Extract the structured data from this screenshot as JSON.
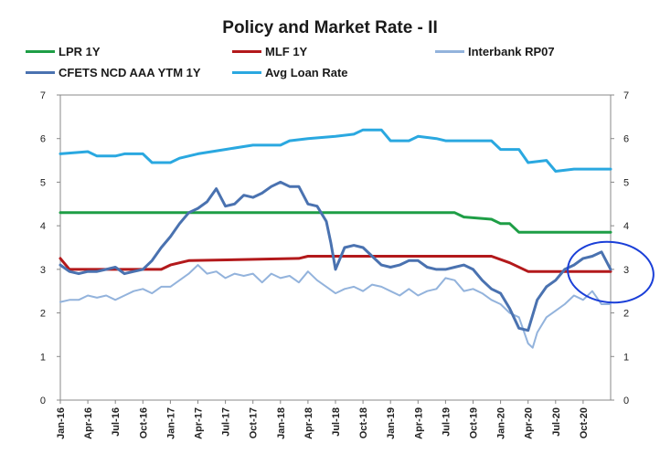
{
  "chart_data": {
    "type": "line",
    "title": "Policy and Market Rate - II",
    "xlabel": "",
    "ylabel": "",
    "ylim": [
      0,
      7
    ],
    "y2lim": [
      0,
      7
    ],
    "yticks": [
      "0",
      "1",
      "2",
      "3",
      "4",
      "5",
      "6",
      "7"
    ],
    "y2ticks": [
      "0",
      "1",
      "2",
      "3",
      "4",
      "5",
      "6",
      "7"
    ],
    "xlim": [
      0,
      60
    ],
    "grid": false,
    "legend_position": "top",
    "x_tick_labels": [
      {
        "label": "Jan-16",
        "x": 0
      },
      {
        "label": "Apr-16",
        "x": 3
      },
      {
        "label": "Jul-16",
        "x": 6
      },
      {
        "label": "Oct-16",
        "x": 9
      },
      {
        "label": "Jan-17",
        "x": 12
      },
      {
        "label": "Apr-17",
        "x": 15
      },
      {
        "label": "Jul-17",
        "x": 18
      },
      {
        "label": "Oct-17",
        "x": 21
      },
      {
        "label": "Jan-18",
        "x": 24
      },
      {
        "label": "Apr-18",
        "x": 27
      },
      {
        "label": "Jul-18",
        "x": 30
      },
      {
        "label": "Oct-18",
        "x": 33
      },
      {
        "label": "Jan-19",
        "x": 36
      },
      {
        "label": "Apr-19",
        "x": 39
      },
      {
        "label": "Jul-19",
        "x": 42
      },
      {
        "label": "Oct-19",
        "x": 45
      },
      {
        "label": "Jan-20",
        "x": 48
      },
      {
        "label": "Apr-20",
        "x": 51
      },
      {
        "label": "Jul-20",
        "x": 54
      },
      {
        "label": "Oct-20",
        "x": 57
      }
    ],
    "series": [
      {
        "name": "LPR 1Y",
        "color": "#1e9e46",
        "width": 3,
        "points": [
          [
            0,
            4.3
          ],
          [
            43,
            4.3
          ],
          [
            44,
            4.2
          ],
          [
            47,
            4.15
          ],
          [
            48,
            4.05
          ],
          [
            49,
            4.05
          ],
          [
            50,
            3.85
          ],
          [
            60,
            3.85
          ]
        ]
      },
      {
        "name": "MLF 1Y",
        "color": "#b3191b",
        "width": 3,
        "points": [
          [
            0,
            3.25
          ],
          [
            1,
            3.0
          ],
          [
            11,
            3.0
          ],
          [
            12,
            3.1
          ],
          [
            14,
            3.2
          ],
          [
            26,
            3.25
          ],
          [
            27,
            3.3
          ],
          [
            47,
            3.3
          ],
          [
            49,
            3.15
          ],
          [
            51,
            2.95
          ],
          [
            60,
            2.95
          ]
        ]
      },
      {
        "name": "Interbank RP07",
        "color": "#93b3dc",
        "width": 2,
        "points": [
          [
            0,
            2.25
          ],
          [
            1,
            2.3
          ],
          [
            2,
            2.3
          ],
          [
            3,
            2.4
          ],
          [
            4,
            2.35
          ],
          [
            5,
            2.4
          ],
          [
            6,
            2.3
          ],
          [
            7,
            2.4
          ],
          [
            8,
            2.5
          ],
          [
            9,
            2.55
          ],
          [
            10,
            2.45
          ],
          [
            11,
            2.6
          ],
          [
            12,
            2.6
          ],
          [
            13,
            2.75
          ],
          [
            14,
            2.9
          ],
          [
            15,
            3.1
          ],
          [
            16,
            2.9
          ],
          [
            17,
            2.95
          ],
          [
            18,
            2.8
          ],
          [
            19,
            2.9
          ],
          [
            20,
            2.85
          ],
          [
            21,
            2.9
          ],
          [
            22,
            2.7
          ],
          [
            23,
            2.9
          ],
          [
            24,
            2.8
          ],
          [
            25,
            2.85
          ],
          [
            26,
            2.7
          ],
          [
            27,
            2.95
          ],
          [
            28,
            2.75
          ],
          [
            29,
            2.6
          ],
          [
            30,
            2.45
          ],
          [
            31,
            2.55
          ],
          [
            32,
            2.6
          ],
          [
            33,
            2.5
          ],
          [
            34,
            2.65
          ],
          [
            35,
            2.6
          ],
          [
            36,
            2.5
          ],
          [
            37,
            2.4
          ],
          [
            38,
            2.55
          ],
          [
            39,
            2.4
          ],
          [
            40,
            2.5
          ],
          [
            41,
            2.55
          ],
          [
            42,
            2.8
          ],
          [
            43,
            2.75
          ],
          [
            44,
            2.5
          ],
          [
            45,
            2.55
          ],
          [
            46,
            2.45
          ],
          [
            47,
            2.3
          ],
          [
            48,
            2.2
          ],
          [
            49,
            2.0
          ],
          [
            50,
            1.9
          ],
          [
            51,
            1.3
          ],
          [
            51.5,
            1.2
          ],
          [
            52,
            1.55
          ],
          [
            53,
            1.9
          ],
          [
            54,
            2.05
          ],
          [
            55,
            2.2
          ],
          [
            56,
            2.4
          ],
          [
            57,
            2.3
          ],
          [
            58,
            2.5
          ],
          [
            59,
            2.2
          ],
          [
            60,
            2.2
          ]
        ]
      },
      {
        "name": "CFETS NCD AAA YTM 1Y",
        "color": "#4a72b0",
        "width": 3,
        "points": [
          [
            0,
            3.1
          ],
          [
            1,
            2.95
          ],
          [
            2,
            2.9
          ],
          [
            3,
            2.95
          ],
          [
            4,
            2.95
          ],
          [
            5,
            3.0
          ],
          [
            6,
            3.05
          ],
          [
            7,
            2.9
          ],
          [
            8,
            2.95
          ],
          [
            9,
            3.0
          ],
          [
            10,
            3.2
          ],
          [
            11,
            3.5
          ],
          [
            12,
            3.75
          ],
          [
            13,
            4.05
          ],
          [
            14,
            4.3
          ],
          [
            15,
            4.4
          ],
          [
            16,
            4.55
          ],
          [
            17,
            4.85
          ],
          [
            18,
            4.45
          ],
          [
            19,
            4.5
          ],
          [
            20,
            4.7
          ],
          [
            21,
            4.65
          ],
          [
            22,
            4.75
          ],
          [
            23,
            4.9
          ],
          [
            24,
            5.0
          ],
          [
            25,
            4.9
          ],
          [
            26,
            4.9
          ],
          [
            27,
            4.5
          ],
          [
            28,
            4.45
          ],
          [
            29,
            4.1
          ],
          [
            29.5,
            3.6
          ],
          [
            30,
            3.0
          ],
          [
            31,
            3.5
          ],
          [
            32,
            3.55
          ],
          [
            33,
            3.5
          ],
          [
            34,
            3.3
          ],
          [
            35,
            3.1
          ],
          [
            36,
            3.05
          ],
          [
            37,
            3.1
          ],
          [
            38,
            3.2
          ],
          [
            39,
            3.2
          ],
          [
            40,
            3.05
          ],
          [
            41,
            3.0
          ],
          [
            42,
            3.0
          ],
          [
            43,
            3.05
          ],
          [
            44,
            3.1
          ],
          [
            45,
            3.0
          ],
          [
            46,
            2.75
          ],
          [
            47,
            2.55
          ],
          [
            48,
            2.45
          ],
          [
            49,
            2.1
          ],
          [
            50,
            1.65
          ],
          [
            51,
            1.6
          ],
          [
            52,
            2.3
          ],
          [
            53,
            2.6
          ],
          [
            54,
            2.75
          ],
          [
            55,
            3.0
          ],
          [
            56,
            3.1
          ],
          [
            57,
            3.25
          ],
          [
            58,
            3.3
          ],
          [
            59,
            3.4
          ],
          [
            60,
            3.0
          ]
        ]
      },
      {
        "name": "Avg Loan Rate",
        "color": "#2aa8e0",
        "width": 3,
        "points": [
          [
            0,
            5.65
          ],
          [
            3,
            5.7
          ],
          [
            4,
            5.6
          ],
          [
            6,
            5.6
          ],
          [
            7,
            5.65
          ],
          [
            9,
            5.65
          ],
          [
            10,
            5.45
          ],
          [
            12,
            5.45
          ],
          [
            13,
            5.55
          ],
          [
            15,
            5.65
          ],
          [
            18,
            5.75
          ],
          [
            21,
            5.85
          ],
          [
            24,
            5.85
          ],
          [
            25,
            5.95
          ],
          [
            27,
            6.0
          ],
          [
            30,
            6.05
          ],
          [
            32,
            6.1
          ],
          [
            33,
            6.2
          ],
          [
            35,
            6.2
          ],
          [
            36,
            5.95
          ],
          [
            38,
            5.95
          ],
          [
            39,
            6.05
          ],
          [
            41,
            6.0
          ],
          [
            42,
            5.95
          ],
          [
            44,
            5.95
          ],
          [
            45,
            5.95
          ],
          [
            47,
            5.95
          ],
          [
            48,
            5.75
          ],
          [
            50,
            5.75
          ],
          [
            51,
            5.45
          ],
          [
            53,
            5.5
          ],
          [
            54,
            5.25
          ],
          [
            56,
            5.3
          ],
          [
            60,
            5.3
          ]
        ]
      }
    ],
    "annotations": [
      {
        "type": "ellipse",
        "description": "hand-drawn circle around latest values",
        "color": "#1a3fd8"
      }
    ]
  }
}
